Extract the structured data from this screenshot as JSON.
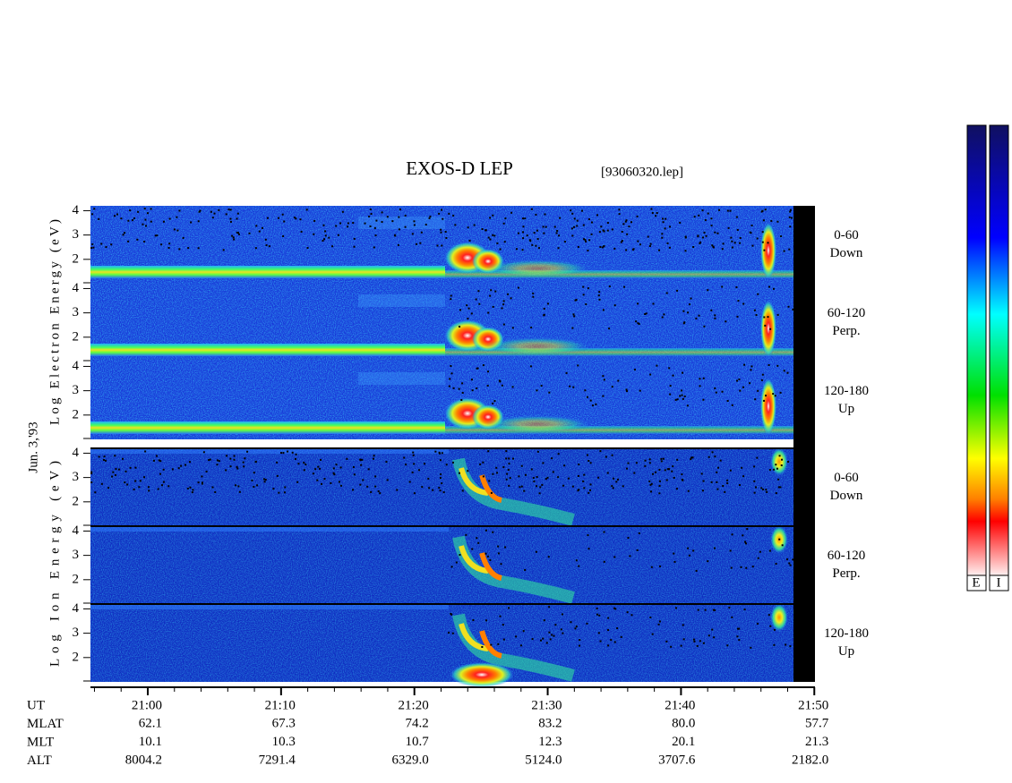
{
  "chart_data": {
    "type": "spectrogram",
    "title": "EXOS-D LEP",
    "file": "[93060320.lep]",
    "date": "Jun. 3,'93",
    "groups": [
      {
        "label": "Log Electron Energy (eV)",
        "legend": "E"
      },
      {
        "label": "Log Ion Energy (eV)",
        "legend": "I"
      }
    ],
    "panels": [
      {
        "range": "0-60",
        "direction": "Down"
      },
      {
        "range": "60-120",
        "direction": "Perp."
      },
      {
        "range": "120-180",
        "direction": "Up"
      },
      {
        "range": "0-60",
        "direction": "Down"
      },
      {
        "range": "60-120",
        "direction": "Perp."
      },
      {
        "range": "120-180",
        "direction": "Up"
      }
    ],
    "ylim": [
      1,
      4.2
    ],
    "yticks": [
      2,
      3,
      4
    ],
    "xlim": [
      1255.7,
      1310.05
    ],
    "xticks": [
      {
        "value": 1260,
        "label": "21:00"
      },
      {
        "value": 1270,
        "label": "21:10"
      },
      {
        "value": 1280,
        "label": "21:20"
      },
      {
        "value": 1290,
        "label": "21:30"
      },
      {
        "value": 1300,
        "label": "21:40"
      },
      {
        "value": 1310,
        "label": "21:50"
      }
    ],
    "ephemeris": {
      "labels": [
        "UT",
        "MLAT",
        "MLT",
        "ALT"
      ],
      "rows": [
        [
          "62.1",
          "67.3",
          "74.2",
          "83.2",
          "80.0",
          "57.7"
        ],
        [
          "10.1",
          "10.3",
          "10.7",
          "12.3",
          "20.1",
          "21.3"
        ],
        [
          "8004.2",
          "7291.4",
          "6329.0",
          "5124.0",
          "3707.6",
          "2182.0"
        ]
      ]
    }
  }
}
